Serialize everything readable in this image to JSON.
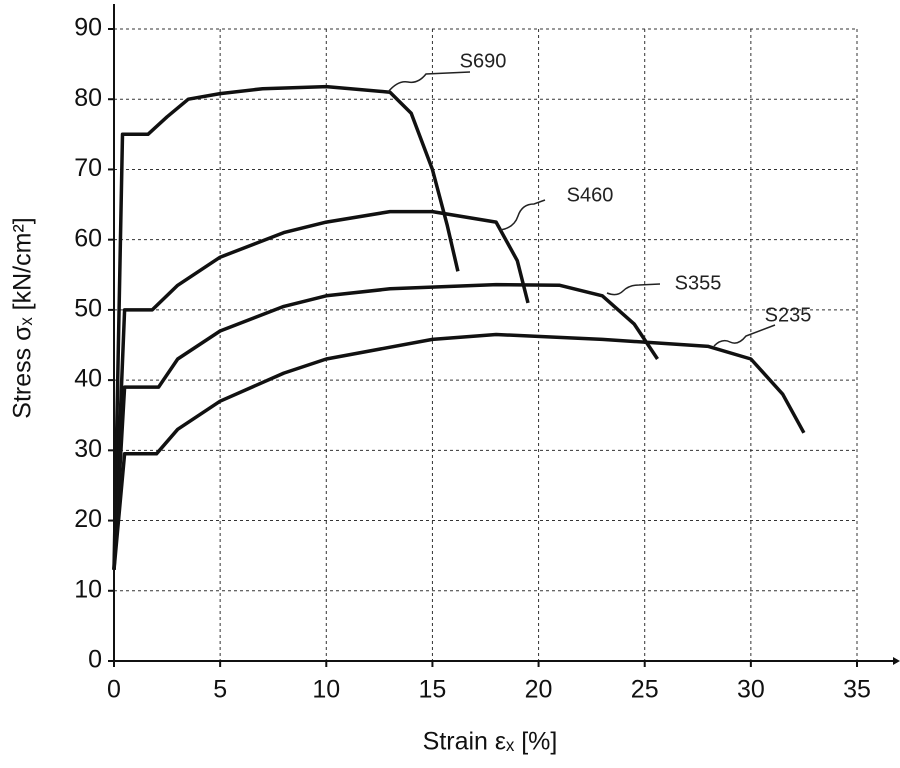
{
  "chart_data": {
    "type": "line",
    "x_label": "Strain εₓ [%]",
    "y_label": "Stress σₓ [kN/cm²]",
    "xlim": [
      0,
      35
    ],
    "ylim": [
      0,
      90
    ],
    "xticks": [
      0,
      5,
      10,
      15,
      20,
      25,
      30,
      35
    ],
    "yticks": [
      0,
      10,
      20,
      30,
      40,
      50,
      60,
      70,
      80,
      90
    ],
    "grid": true,
    "series": [
      {
        "name": "S690",
        "color": "#111111",
        "x": [
          0,
          0.4,
          1.6,
          2.5,
          3.5,
          5,
          7,
          10,
          13,
          14,
          15,
          15.7,
          16.2
        ],
        "values": [
          13,
          75,
          75,
          77.5,
          80,
          80.8,
          81.5,
          81.8,
          81,
          78,
          70,
          62,
          55.5
        ]
      },
      {
        "name": "S460",
        "color": "#111111",
        "x": [
          0,
          0.5,
          1.8,
          3,
          5,
          8,
          10,
          13,
          15,
          18,
          19,
          19.5
        ],
        "values": [
          13,
          50,
          50,
          53.5,
          57.5,
          61,
          62.5,
          64,
          64,
          62.5,
          57,
          51
        ]
      },
      {
        "name": "S355",
        "color": "#111111",
        "x": [
          0,
          0.5,
          2.1,
          3,
          5,
          8,
          10,
          13,
          18,
          21,
          23,
          24.5,
          25.6
        ],
        "values": [
          13,
          39,
          39,
          43,
          47,
          50.5,
          52,
          53,
          53.6,
          53.5,
          52,
          48,
          43
        ]
      },
      {
        "name": "S235",
        "color": "#111111",
        "x": [
          0,
          0.5,
          2,
          3,
          5,
          8,
          10,
          15,
          18,
          23,
          28,
          30,
          31.5,
          32.5
        ],
        "values": [
          13,
          29.5,
          29.5,
          33,
          37,
          41,
          43,
          45.8,
          46.5,
          45.8,
          44.8,
          43,
          38,
          32.5
        ]
      }
    ]
  }
}
